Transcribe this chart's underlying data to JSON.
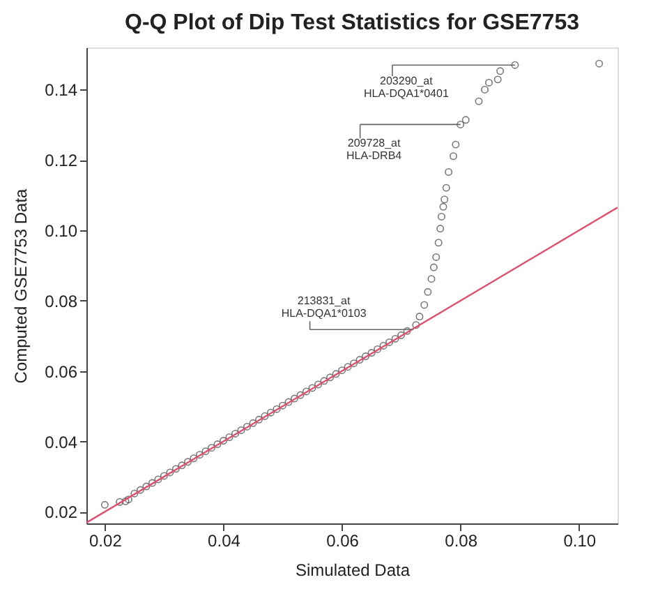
{
  "chart_data": {
    "type": "scatter",
    "title": "Q-Q Plot of Dip Test Statistics for GSE7753",
    "xlabel": "Simulated Data",
    "ylabel": "Computed GSE7753 Data",
    "xlim": [
      0.0169,
      0.1065
    ],
    "ylim": [
      0.0167,
      0.152
    ],
    "xticks": [
      0.02,
      0.04,
      0.06,
      0.08,
      {
        "value": 0.1,
        "label": "0.10"
      }
    ],
    "yticks": [
      0.02,
      0.04,
      0.06,
      0.08,
      {
        "value": 0.1,
        "label": "0.10"
      },
      0.12,
      0.14
    ],
    "grid": false,
    "series": [
      {
        "marker": "circle",
        "color": "#404040",
        "x": [
          0.02,
          0.0225,
          0.0235,
          0.024,
          0.025,
          0.026,
          0.027,
          0.028,
          0.029,
          0.03,
          0.031,
          0.032,
          0.033,
          0.034,
          0.035,
          0.036,
          0.037,
          0.038,
          0.039,
          0.04,
          0.041,
          0.042,
          0.043,
          0.044,
          0.045,
          0.046,
          0.047,
          0.048,
          0.049,
          0.05,
          0.051,
          0.052,
          0.053,
          0.054,
          0.055,
          0.056,
          0.057,
          0.058,
          0.059,
          0.06,
          0.061,
          0.062,
          0.063,
          0.064,
          0.065,
          0.066,
          0.067,
          0.068,
          0.069,
          0.07,
          0.071,
          0.0725,
          0.0731,
          0.0739,
          0.0745,
          0.0751,
          0.0755,
          0.0759,
          0.0763,
          0.0766,
          0.0768,
          0.0771,
          0.0773,
          0.0776,
          0.078,
          0.0788,
          0.0792,
          0.08,
          0.0809,
          0.0831,
          0.0841,
          0.0848,
          0.0863,
          0.0867,
          0.0892,
          0.1034
        ],
        "values": [
          0.022,
          0.0228,
          0.023,
          0.0235,
          0.0252,
          0.0262,
          0.0272,
          0.0282,
          0.0292,
          0.0302,
          0.0312,
          0.0322,
          0.0332,
          0.0342,
          0.0352,
          0.0362,
          0.0372,
          0.0382,
          0.0392,
          0.0402,
          0.0412,
          0.0422,
          0.0432,
          0.0442,
          0.0452,
          0.0462,
          0.0472,
          0.0482,
          0.0492,
          0.0502,
          0.0512,
          0.0522,
          0.0532,
          0.0542,
          0.0552,
          0.0562,
          0.0572,
          0.0582,
          0.0592,
          0.0602,
          0.0612,
          0.0622,
          0.0632,
          0.0642,
          0.0652,
          0.0662,
          0.0672,
          0.0682,
          0.0692,
          0.0702,
          0.0714,
          0.0731,
          0.0755,
          0.0788,
          0.0825,
          0.0862,
          0.0895,
          0.0924,
          0.0965,
          0.1005,
          0.1039,
          0.1067,
          0.1088,
          0.1121,
          0.1166,
          0.1211,
          0.1244,
          0.1301,
          0.1314,
          0.1367,
          0.14,
          0.142,
          0.1429,
          0.1453,
          0.147,
          0.1474
        ]
      },
      {
        "type": "line",
        "marker": "none",
        "line_style": "solid",
        "color": "#e0506e",
        "x": [
          0.0169,
          0.1065
        ],
        "values": [
          0.0169,
          0.1065
        ]
      }
    ],
    "annotations": [
      {
        "text": "203290_at\nHLA-DQA1*0401",
        "x": 0.0892,
        "y": 0.147
      },
      {
        "text": "209728_at\nHLA-DRB4",
        "x": 0.08,
        "y": 0.1301
      },
      {
        "text": "213831_at\nHLA-DQA1*0103",
        "x": 0.072,
        "y": 0.0718
      }
    ]
  }
}
